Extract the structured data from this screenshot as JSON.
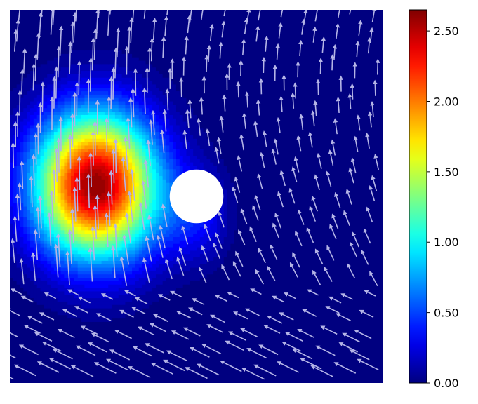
{
  "chart_data": {
    "type": "heatmap",
    "title": "",
    "xlabel": "",
    "ylabel": "",
    "grid": false,
    "colormap": "jet",
    "colorbar": {
      "vmin": 0.0,
      "vmax": 2.65,
      "ticks": [
        0.0,
        0.5,
        1.0,
        1.5,
        2.0,
        2.5
      ],
      "tick_labels": [
        "0.00",
        "0.50",
        "1.00",
        "1.50",
        "2.00",
        "2.50"
      ]
    },
    "domain": {
      "x": [
        0,
        1
      ],
      "y": [
        0,
        1
      ]
    },
    "field": {
      "peak_value": 2.65,
      "peak_location": [
        0.23,
        0.53
      ],
      "spread": [
        0.16,
        0.19
      ]
    },
    "obstacle": {
      "shape": "circle",
      "center": [
        0.5,
        0.5
      ],
      "radius": 0.072,
      "color": "#ffffff"
    },
    "vectors": {
      "description": "velocity quiver field",
      "color": "#b4b4e6"
    }
  },
  "colors": {
    "low": "#00007f",
    "high": "#7f0000",
    "quiver": "#b4b4e6"
  }
}
